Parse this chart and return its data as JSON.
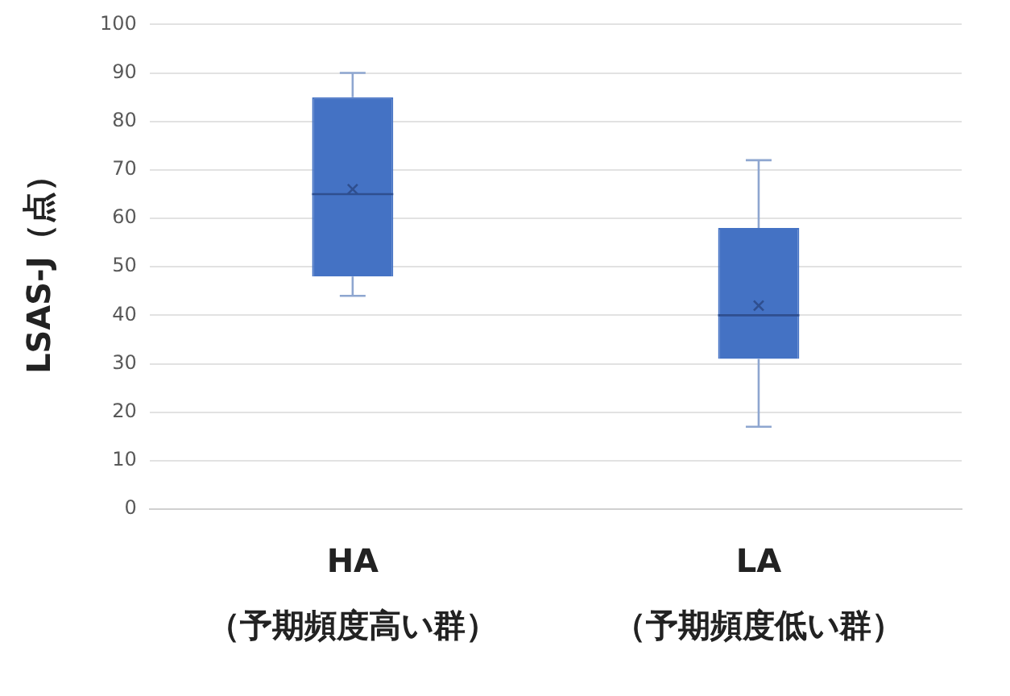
{
  "chart_data": {
    "type": "box",
    "ylabel": "LSAS-J（点）",
    "categories": [
      "HA\n（予期頻度高い群）",
      "LA\n（予期頻度低い群）"
    ],
    "color": "#4472c4",
    "boxes": [
      {
        "low": 44,
        "q1": 48,
        "median": 65,
        "q3": 85,
        "high": 90,
        "mean": 66
      },
      {
        "low": 17,
        "q1": 31,
        "median": 40,
        "q3": 58,
        "high": 72,
        "mean": 42
      }
    ],
    "ylim": [
      0,
      100
    ],
    "yticks": [
      0,
      10,
      20,
      30,
      40,
      50,
      60,
      70,
      80,
      90,
      100
    ],
    "grid": "y",
    "legend": false
  }
}
